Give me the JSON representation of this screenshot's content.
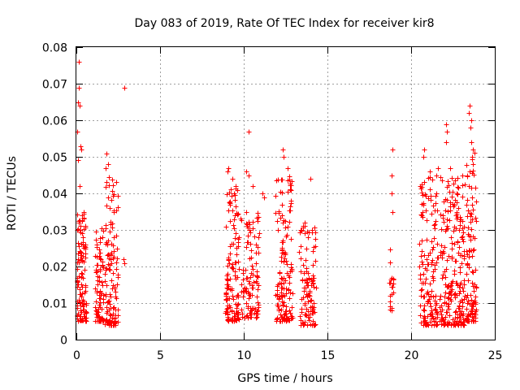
{
  "chart_data": {
    "type": "scatter",
    "title": "Day 083 of 2019, Rate Of TEC Index for receiver kir8",
    "xlabel": "GPS time / hours",
    "ylabel": "ROTI / TECUs",
    "xlim": [
      0,
      25
    ],
    "ylim": [
      0,
      0.08
    ],
    "x_ticks": [
      0,
      5,
      10,
      15,
      20,
      25
    ],
    "y_ticks": [
      0,
      0.01,
      0.02,
      0.03,
      0.04,
      0.05,
      0.06,
      0.07,
      0.08
    ],
    "x_tick_labels": [
      "0",
      "5",
      "10",
      "15",
      "20",
      "25"
    ],
    "y_tick_labels": [
      "0",
      "0.01",
      "0.02",
      "0.03",
      "0.04",
      "0.05",
      "0.06",
      "0.07",
      "0.08"
    ],
    "grid": true,
    "marker": "+",
    "color": "#ff0000",
    "clusters": [
      {
        "x_start": 0.0,
        "x_end": 0.6,
        "y_min": 0.005,
        "y_max": 0.035,
        "count": 120
      },
      {
        "x_start": 1.1,
        "x_end": 1.6,
        "y_min": 0.005,
        "y_max": 0.032,
        "count": 80
      },
      {
        "x_start": 1.7,
        "x_end": 2.5,
        "y_min": 0.004,
        "y_max": 0.045,
        "count": 120
      },
      {
        "x_start": 8.9,
        "x_end": 9.7,
        "y_min": 0.005,
        "y_max": 0.042,
        "count": 130
      },
      {
        "x_start": 9.8,
        "x_end": 10.9,
        "y_min": 0.006,
        "y_max": 0.035,
        "count": 110
      },
      {
        "x_start": 11.9,
        "x_end": 12.9,
        "y_min": 0.005,
        "y_max": 0.045,
        "count": 150
      },
      {
        "x_start": 13.3,
        "x_end": 14.3,
        "y_min": 0.004,
        "y_max": 0.032,
        "count": 110
      },
      {
        "x_start": 18.7,
        "x_end": 19.0,
        "y_min": 0.008,
        "y_max": 0.025,
        "count": 20
      },
      {
        "x_start": 20.5,
        "x_end": 21.6,
        "y_min": 0.004,
        "y_max": 0.045,
        "count": 150
      },
      {
        "x_start": 21.7,
        "x_end": 23.2,
        "y_min": 0.004,
        "y_max": 0.045,
        "count": 230
      },
      {
        "x_start": 23.3,
        "x_end": 23.9,
        "y_min": 0.005,
        "y_max": 0.055,
        "count": 110
      }
    ],
    "outliers": [
      {
        "x": 0.15,
        "y": 0.076
      },
      {
        "x": 0.15,
        "y": 0.069
      },
      {
        "x": 0.12,
        "y": 0.065
      },
      {
        "x": 0.18,
        "y": 0.064
      },
      {
        "x": 0.05,
        "y": 0.057
      },
      {
        "x": 0.25,
        "y": 0.053
      },
      {
        "x": 0.3,
        "y": 0.052
      },
      {
        "x": 0.1,
        "y": 0.049
      },
      {
        "x": 0.2,
        "y": 0.042
      },
      {
        "x": 2.85,
        "y": 0.069
      },
      {
        "x": 2.8,
        "y": 0.022
      },
      {
        "x": 2.85,
        "y": 0.021
      },
      {
        "x": 1.8,
        "y": 0.051
      },
      {
        "x": 1.9,
        "y": 0.048
      },
      {
        "x": 1.75,
        "y": 0.047
      },
      {
        "x": 10.3,
        "y": 0.057
      },
      {
        "x": 10.15,
        "y": 0.046
      },
      {
        "x": 10.3,
        "y": 0.045
      },
      {
        "x": 9.1,
        "y": 0.047
      },
      {
        "x": 9.05,
        "y": 0.046
      },
      {
        "x": 9.3,
        "y": 0.044
      },
      {
        "x": 10.55,
        "y": 0.042
      },
      {
        "x": 11.1,
        "y": 0.04
      },
      {
        "x": 11.2,
        "y": 0.039
      },
      {
        "x": 12.35,
        "y": 0.052
      },
      {
        "x": 12.4,
        "y": 0.05
      },
      {
        "x": 12.6,
        "y": 0.047
      },
      {
        "x": 14.0,
        "y": 0.044
      },
      {
        "x": 18.9,
        "y": 0.052
      },
      {
        "x": 18.85,
        "y": 0.045
      },
      {
        "x": 18.85,
        "y": 0.04
      },
      {
        "x": 18.9,
        "y": 0.035
      },
      {
        "x": 20.8,
        "y": 0.052
      },
      {
        "x": 20.75,
        "y": 0.05
      },
      {
        "x": 21.1,
        "y": 0.046
      },
      {
        "x": 21.5,
        "y": 0.045
      },
      {
        "x": 21.6,
        "y": 0.047
      },
      {
        "x": 22.1,
        "y": 0.059
      },
      {
        "x": 22.15,
        "y": 0.057
      },
      {
        "x": 22.1,
        "y": 0.054
      },
      {
        "x": 22.35,
        "y": 0.047
      },
      {
        "x": 23.5,
        "y": 0.064
      },
      {
        "x": 23.45,
        "y": 0.062
      },
      {
        "x": 23.6,
        "y": 0.06
      },
      {
        "x": 23.55,
        "y": 0.058
      },
      {
        "x": 23.6,
        "y": 0.054
      },
      {
        "x": 23.7,
        "y": 0.052
      },
      {
        "x": 23.65,
        "y": 0.05
      }
    ]
  }
}
